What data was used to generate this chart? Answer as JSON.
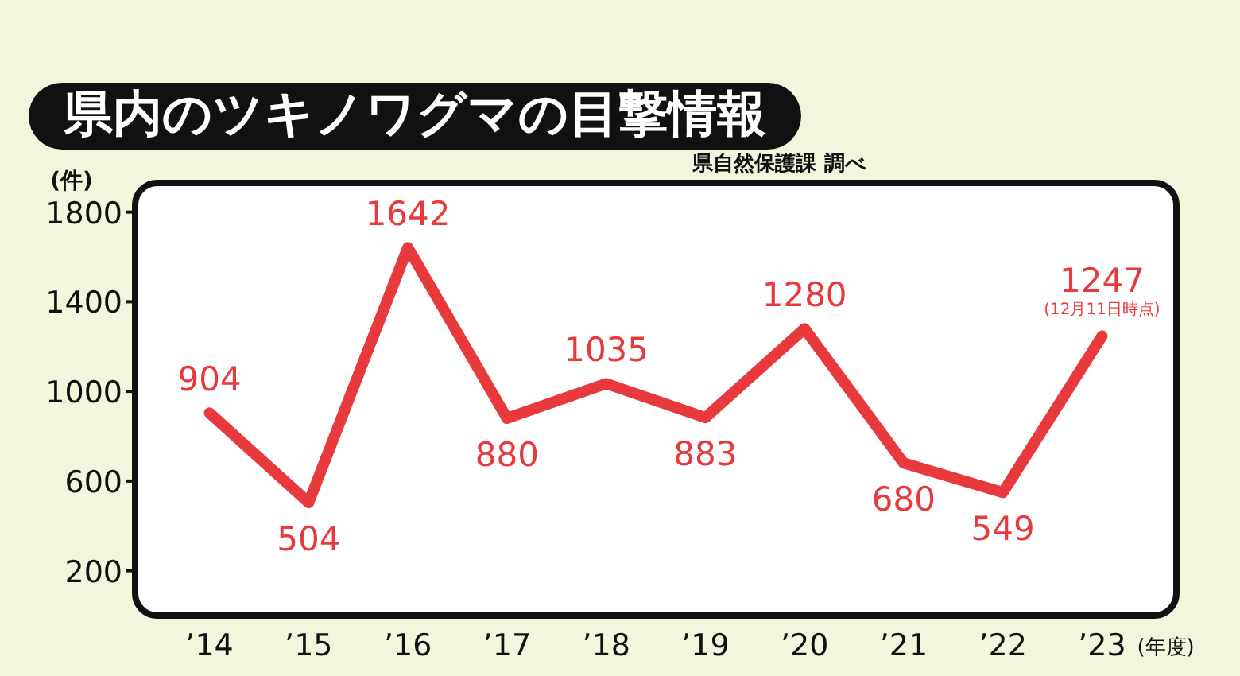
{
  "chart_data": {
    "type": "line",
    "title": "県内のツキノワグマの目撃情報",
    "subtitle": "県自然保護課 調べ",
    "ylabel": "(件)",
    "xlabel": "(年度)",
    "categories": [
      "’14",
      "’15",
      "’16",
      "’17",
      "’18",
      "’19",
      "’20",
      "’21",
      "’22",
      "’23"
    ],
    "series": [
      {
        "color": "#e8393c",
        "values": [
          904,
          504,
          1642,
          880,
          1035,
          883,
          1280,
          680,
          549,
          1247
        ]
      }
    ],
    "ylim": [
      0,
      1930
    ],
    "yticks": [
      200,
      600,
      1000,
      1400,
      1800
    ],
    "data_labels": true,
    "grid": false,
    "marker": "none",
    "line_style": "solid",
    "annotations": [
      {
        "text": "(12月11日時点)",
        "x": "’23",
        "y": 1247
      }
    ]
  }
}
